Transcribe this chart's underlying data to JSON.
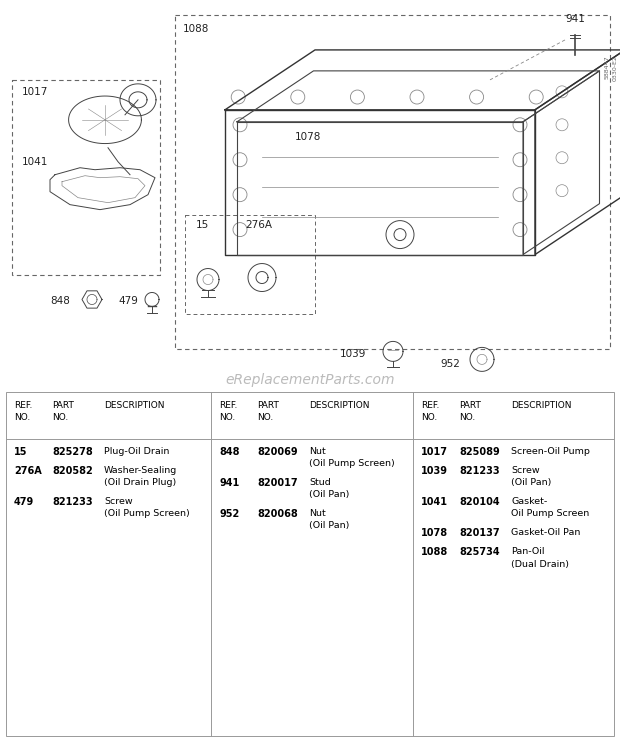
{
  "bg_color": "#ffffff",
  "watermark": "eReplacementParts.com",
  "col1_rows": [
    {
      "ref": "15",
      "part": "825278",
      "desc": "Plug-Oil Drain"
    },
    {
      "ref": "276A",
      "part": "820582",
      "desc": "Washer-Sealing\n(Oil Drain Plug)"
    },
    {
      "ref": "479",
      "part": "821233",
      "desc": "Screw\n(Oil Pump Screen)"
    }
  ],
  "col2_rows": [
    {
      "ref": "848",
      "part": "820069",
      "desc": "Nut\n(Oil Pump Screen)"
    },
    {
      "ref": "941",
      "part": "820017",
      "desc": "Stud\n(Oil Pan)"
    },
    {
      "ref": "952",
      "part": "820068",
      "desc": "Nut\n(Oil Pan)"
    }
  ],
  "col3_rows": [
    {
      "ref": "1017",
      "part": "825089",
      "desc": "Screen-Oil Pump"
    },
    {
      "ref": "1039",
      "part": "821233",
      "desc": "Screw\n(Oil Pan)"
    },
    {
      "ref": "1041",
      "part": "820104",
      "desc": "Gasket-\nOil Pump Screen"
    },
    {
      "ref": "1078",
      "part": "820137",
      "desc": "Gasket-Oil Pan"
    },
    {
      "ref": "1088",
      "part": "825734",
      "desc": "Pan-Oil\n(Dual Drain)"
    }
  ]
}
